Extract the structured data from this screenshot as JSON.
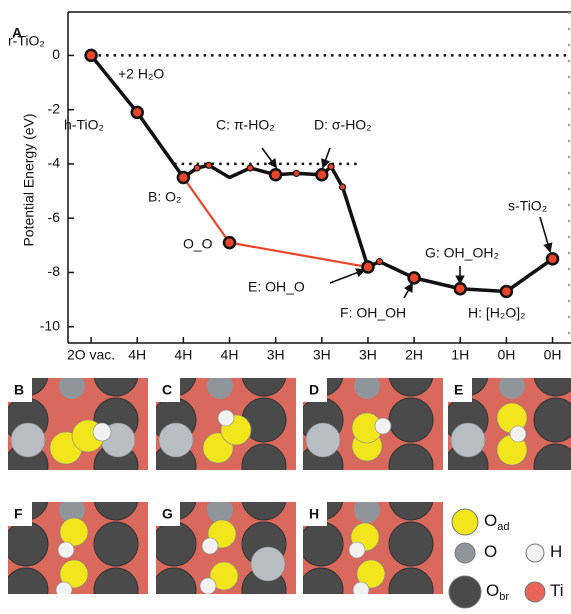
{
  "chart_data": {
    "type": "line",
    "panel_label": "A",
    "ylabel": "Potential Energy (eV)",
    "xlim": [
      -0.5,
      10.4
    ],
    "ylim": [
      -10.6,
      1.6
    ],
    "xticks": [
      {
        "value": 0,
        "label": "2O vac."
      },
      {
        "value": 1,
        "label": "4H"
      },
      {
        "value": 2,
        "label": "4H"
      },
      {
        "value": 3,
        "label": "4H"
      },
      {
        "value": 4,
        "label": "3H"
      },
      {
        "value": 5,
        "label": "3H"
      },
      {
        "value": 6,
        "label": "3H"
      },
      {
        "value": 7,
        "label": "2H"
      },
      {
        "value": 8,
        "label": "1H"
      },
      {
        "value": 9,
        "label": "0H"
      },
      {
        "value": 10,
        "label": "0H"
      }
    ],
    "yticks": [
      0,
      -2,
      -4,
      -6,
      -8,
      -10
    ],
    "reference_lines": [
      {
        "y": 0,
        "x": [
          0,
          10.4
        ]
      },
      {
        "y": -4,
        "x": [
          1.8,
          5.85
        ]
      }
    ],
    "series": [
      {
        "color": "#111111",
        "marker_color": "#e8452c",
        "x": [
          0,
          1,
          2,
          2.3,
          2.55,
          3,
          3.45,
          4,
          4.45,
          5,
          5.2,
          5.45,
          6,
          6.25,
          7,
          8,
          9,
          10
        ],
        "values": [
          0,
          -2.1,
          -4.5,
          -4.15,
          -4.05,
          -4.5,
          -4.15,
          -4.4,
          -4.35,
          -4.4,
          -4.1,
          -4.85,
          -7.8,
          -7.6,
          -8.2,
          -8.6,
          -8.7,
          -7.5
        ],
        "markers": [
          "large",
          "large",
          "large",
          "small",
          "small",
          "none",
          "small",
          "large",
          "small",
          "large",
          "small",
          "small",
          "large",
          "small",
          "large",
          "large",
          "large",
          "large"
        ]
      },
      {
        "color": "#e8452c",
        "marker_color": "#e8452c",
        "x": [
          2,
          3,
          6
        ],
        "values": [
          -4.5,
          -6.9,
          -7.8
        ],
        "markers": [
          "none",
          "large",
          "none"
        ]
      }
    ],
    "annotations": [
      "r-TiO₂",
      "+2 H₂O",
      "h-TiO₂",
      "B: O₂",
      "C: π-HO₂",
      "D: σ-HO₂",
      "O_O",
      "E: OH_O",
      "F: OH_OH",
      "G: OH_OH₂",
      "H: [H₂O]₂",
      "s-TiO₂"
    ]
  },
  "structures": {
    "panels": [
      "B",
      "C",
      "D",
      "E",
      "F",
      "G",
      "H"
    ],
    "legend": [
      {
        "symbol": "O",
        "subscript": "ad"
      },
      {
        "symbol": "O"
      },
      {
        "symbol": "H"
      },
      {
        "symbol": "O",
        "subscript": "br"
      },
      {
        "symbol": "Ti"
      }
    ]
  }
}
